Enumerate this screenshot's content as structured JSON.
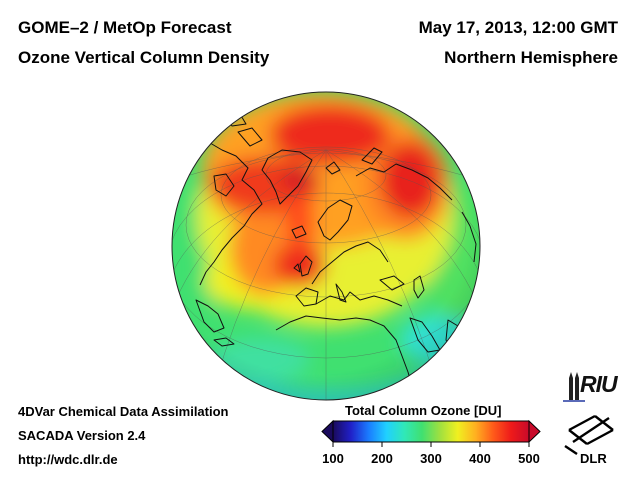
{
  "header": {
    "product": "GOME–2 / MetOp Forecast",
    "quantity": "Ozone Vertical Column Density",
    "datetime": "May 17, 2013, 12:00 GMT",
    "region": "Northern Hemisphere"
  },
  "footer": {
    "method": "4DVar Chemical Data Assimilation",
    "version": "SACADA Version 2.4",
    "url": "http://wdc.dlr.de"
  },
  "colorbar": {
    "title": "Total Column Ozone [DU]",
    "unit": "DU",
    "min": 100,
    "max": 500,
    "ticks": [
      "100",
      "200",
      "300",
      "400",
      "500"
    ],
    "tick_values": [
      100,
      200,
      300,
      400,
      500
    ],
    "colors": [
      "#1a0a5c",
      "#2020c8",
      "#1a7cff",
      "#20d0ff",
      "#30e8b8",
      "#40e070",
      "#9fe040",
      "#f0f020",
      "#ffb020",
      "#ff5a1a",
      "#ee1a1a",
      "#c80a2a"
    ]
  },
  "map": {
    "projection": "orthographic",
    "center": "Northern Hemisphere, centered near 50°N 10°E"
  },
  "logos": {
    "riu": "RIU",
    "dlr": "DLR"
  }
}
